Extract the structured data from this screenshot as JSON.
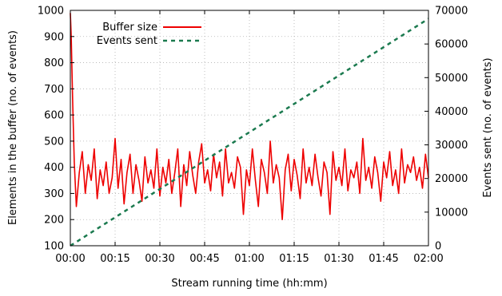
{
  "chart_data": {
    "type": "line",
    "xlabel": "Stream running time (hh:mm)",
    "ylabel": "Elements in the buffer (no. of events)",
    "y2label": "Events sent (no. of events)",
    "xlim_minutes": [
      0,
      120
    ],
    "ylim": [
      100,
      1000
    ],
    "y2lim": [
      0,
      70000
    ],
    "x_ticks": [
      "00:00",
      "00:15",
      "00:30",
      "00:45",
      "01:00",
      "01:15",
      "01:30",
      "01:45",
      "02:00"
    ],
    "y_ticks": [
      "100",
      "200",
      "300",
      "400",
      "500",
      "600",
      "700",
      "800",
      "900",
      "1000"
    ],
    "y2_ticks": [
      "0",
      "10000",
      "20000",
      "30000",
      "40000",
      "50000",
      "60000",
      "70000"
    ],
    "grid": true,
    "legend_position": "top-left",
    "series": [
      {
        "name": "Buffer size",
        "axis": "left",
        "style": "solid",
        "color": "#ee0000",
        "x_minutes": [
          0,
          0.3,
          0.8,
          1.3,
          2,
          3,
          4,
          5,
          6,
          7,
          8,
          9,
          10,
          11,
          12,
          13,
          14,
          15,
          16,
          17,
          18,
          19,
          20,
          21,
          22,
          23,
          24,
          25,
          26,
          27,
          28,
          29,
          30,
          31,
          32,
          33,
          34,
          35,
          36,
          37,
          38,
          39,
          40,
          41,
          42,
          43,
          44,
          45,
          46,
          47,
          48,
          49,
          50,
          51,
          52,
          53,
          54,
          55,
          56,
          57,
          58,
          59,
          60,
          61,
          62,
          63,
          64,
          65,
          66,
          67,
          68,
          69,
          70,
          71,
          72,
          73,
          74,
          75,
          76,
          77,
          78,
          79,
          80,
          81,
          82,
          83,
          84,
          85,
          86,
          87,
          88,
          89,
          90,
          91,
          92,
          93,
          94,
          95,
          96,
          97,
          98,
          99,
          100,
          101,
          102,
          103,
          104,
          105,
          106,
          107,
          108,
          109,
          110,
          111,
          112,
          113,
          114,
          115,
          116,
          117,
          118,
          119,
          120
        ],
        "values": [
          990,
          900,
          640,
          420,
          250,
          380,
          460,
          300,
          410,
          350,
          470,
          280,
          390,
          330,
          420,
          300,
          360,
          510,
          320,
          430,
          260,
          380,
          450,
          300,
          410,
          350,
          270,
          440,
          340,
          390,
          320,
          470,
          290,
          400,
          340,
          430,
          300,
          380,
          470,
          250,
          410,
          330,
          460,
          370,
          300,
          420,
          490,
          340,
          390,
          310,
          450,
          360,
          420,
          290,
          470,
          340,
          380,
          320,
          440,
          400,
          220,
          390,
          330,
          470,
          350,
          250,
          430,
          380,
          300,
          500,
          340,
          410,
          360,
          200,
          390,
          450,
          310,
          430,
          370,
          280,
          470,
          340,
          400,
          330,
          450,
          360,
          290,
          420,
          380,
          220,
          460,
          350,
          400,
          330,
          470,
          310,
          390,
          360,
          420,
          300,
          510,
          350,
          400,
          320,
          440,
          380,
          270,
          420,
          360,
          460,
          330,
          390,
          300,
          470,
          340,
          410,
          380,
          440,
          350,
          400,
          320,
          450,
          360
        ]
      },
      {
        "name": "Events sent",
        "axis": "right",
        "style": "dashed",
        "color": "#1b7a4f",
        "x_minutes": [
          0,
          120
        ],
        "values": [
          0,
          67500
        ]
      }
    ]
  }
}
